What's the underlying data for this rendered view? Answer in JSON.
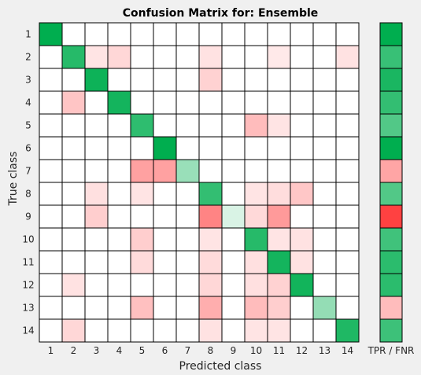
{
  "chart_data": {
    "type": "heatmap",
    "title": "Confusion Matrix for: Ensemble",
    "xlabel": "Predicted class",
    "ylabel": "True class",
    "side_label": "TPR / FNR",
    "classes": [
      "1",
      "2",
      "3",
      "4",
      "5",
      "6",
      "7",
      "8",
      "9",
      "10",
      "11",
      "12",
      "13",
      "14"
    ],
    "colors": {
      "background": "#f0f0f0",
      "correct_high": "#00ae4f",
      "wrong_high": "#ff1f1f",
      "grid": "#000000"
    },
    "cells": [
      [
        1.0,
        0,
        0,
        0,
        0,
        0,
        0,
        0,
        0,
        0,
        0,
        0,
        0,
        0
      ],
      [
        0,
        0.85,
        0.12,
        0.18,
        0,
        0,
        0,
        0.13,
        0,
        0,
        0.1,
        0,
        0,
        0.13
      ],
      [
        0,
        0,
        0.95,
        0,
        0,
        0,
        0,
        0.2,
        0,
        0,
        0,
        0,
        0,
        0
      ],
      [
        0,
        0.26,
        0,
        0.92,
        0,
        0,
        0,
        0,
        0,
        0,
        0,
        0,
        0,
        0
      ],
      [
        0,
        0,
        0,
        0,
        0.82,
        0,
        0,
        0,
        0,
        0.3,
        0.12,
        0,
        0,
        0
      ],
      [
        0,
        0,
        0,
        0,
        0,
        1.0,
        0,
        0,
        0,
        0,
        0,
        0,
        0,
        0
      ],
      [
        0,
        0,
        0,
        0,
        -0.42,
        -0.42,
        0.4,
        0,
        0,
        0,
        0,
        0,
        0,
        0
      ],
      [
        0,
        0,
        0.14,
        0,
        0.12,
        0,
        0,
        0.8,
        0,
        0.12,
        0.15,
        0.25,
        0,
        0
      ],
      [
        0,
        0,
        0.22,
        0,
        0,
        0,
        0,
        -0.55,
        0.15,
        0.17,
        -0.45,
        0,
        0,
        0
      ],
      [
        0,
        0,
        0,
        0,
        0.22,
        0,
        0,
        0.12,
        0,
        0.85,
        0.12,
        0.13,
        0,
        0
      ],
      [
        0,
        0,
        0,
        0,
        0.16,
        0,
        0,
        0.16,
        0,
        0.14,
        0.92,
        0.13,
        0,
        0
      ],
      [
        0,
        0.13,
        0,
        0,
        0,
        0,
        0,
        0.18,
        0,
        0.14,
        0.2,
        0.93,
        0,
        0
      ],
      [
        0,
        0,
        0,
        0,
        0.28,
        0,
        0,
        0.36,
        0,
        0.3,
        0.22,
        0,
        0.42,
        0
      ],
      [
        0,
        0.18,
        0,
        0,
        0,
        0,
        0,
        0.13,
        0,
        0.12,
        0.12,
        0,
        0,
        0.88
      ]
    ],
    "tpr_fnr": [
      1.0,
      0.78,
      0.9,
      0.8,
      0.68,
      1.0,
      -0.4,
      0.68,
      -0.85,
      0.75,
      0.83,
      0.83,
      -0.3,
      0.76
    ]
  }
}
